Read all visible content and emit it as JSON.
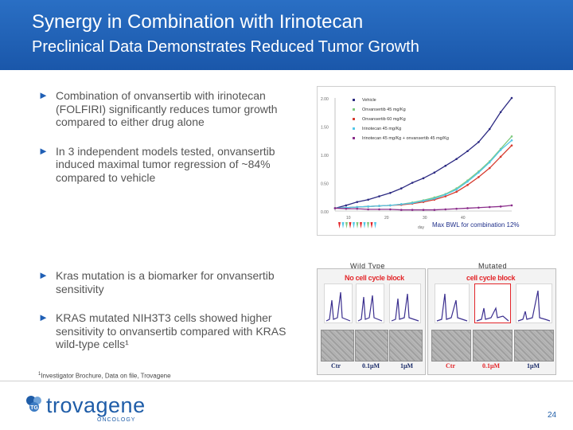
{
  "header": {
    "title": "Synergy in Combination with Irinotecan",
    "subtitle": "Preclinical Data Demonstrates Reduced Tumor Growth"
  },
  "bullets_top": [
    "Combination of onvansertib with irinotecan (FOLFIRI) significantly reduces tumor growth compared to either drug alone",
    "In 3 independent models tested, onvansertib induced maximal tumor regression of ~84% compared to vehicle"
  ],
  "bullets_bottom": [
    "Kras mutation is a biomarker for onvansertib sensitivity",
    "KRAS mutated NIH3T3 cells showed higher sensitivity to onvansertib compared with KRAS wild-type cells¹"
  ],
  "bullet_arrow": "►",
  "chart_data": {
    "type": "line",
    "x": [
      0,
      2,
      4,
      6,
      8,
      10,
      12,
      14,
      16,
      18,
      20,
      22,
      24,
      26,
      28,
      30,
      32
    ],
    "series": [
      {
        "name": "Vehicle",
        "color": "#2c2a82",
        "values": [
          0.05,
          0.1,
          0.16,
          0.2,
          0.26,
          0.32,
          0.4,
          0.5,
          0.58,
          0.68,
          0.8,
          0.92,
          1.06,
          1.22,
          1.45,
          1.75,
          2.0
        ]
      },
      {
        "name": "Onvansertib 45 mg/Kg",
        "color": "#7fc97f",
        "values": [
          0.05,
          0.06,
          0.07,
          0.08,
          0.09,
          0.1,
          0.12,
          0.15,
          0.19,
          0.24,
          0.3,
          0.4,
          0.54,
          0.7,
          0.88,
          1.1,
          1.32
        ]
      },
      {
        "name": "Onvansertib 60 mg/Kg",
        "color": "#d63b2f",
        "values": [
          0.05,
          0.06,
          0.07,
          0.08,
          0.09,
          0.1,
          0.11,
          0.13,
          0.16,
          0.2,
          0.26,
          0.34,
          0.46,
          0.6,
          0.76,
          0.96,
          1.16
        ]
      },
      {
        "name": "Irinotecan 45 mg/Kg",
        "color": "#52c7e8",
        "values": [
          0.05,
          0.06,
          0.07,
          0.08,
          0.09,
          0.1,
          0.12,
          0.14,
          0.18,
          0.22,
          0.29,
          0.38,
          0.52,
          0.68,
          0.86,
          1.08,
          1.25
        ]
      },
      {
        "name": "Irinotecan 45 mg/Kg + onvansertib 45 mg/Kg",
        "color": "#8a2c8a",
        "values": [
          0.05,
          0.04,
          0.04,
          0.03,
          0.03,
          0.03,
          0.02,
          0.02,
          0.02,
          0.02,
          0.03,
          0.04,
          0.05,
          0.06,
          0.07,
          0.08,
          0.1
        ]
      }
    ],
    "ylim": [
      0,
      2.0
    ],
    "xlim": [
      0,
      32
    ],
    "y_ticks": [
      "2.00",
      "1.50",
      "1.00",
      "0.50",
      "0.00"
    ],
    "x_ticks": [
      "10",
      "20",
      "30",
      "40"
    ],
    "xlabel": "day",
    "annotation": "Max BWL for combination 12%",
    "legend_position": "top-right",
    "markers": {
      "count": 11,
      "colors": [
        "#e3262a",
        "#52c7e8",
        "#7fc97f"
      ]
    }
  },
  "panels": {
    "wild_type_label": "Wild Type",
    "mutated_label": "Mutated",
    "wild_type_header": "No cell cycle block",
    "mutated_header": "cell cycle block",
    "wild_type_doses": [
      "Ctr",
      "0.1μM",
      "1μM"
    ],
    "mutated_doses": [
      "Ctr",
      "0.1μM",
      "1μM"
    ],
    "dose_colors": [
      "#1d2e6a",
      "#1d2e6a",
      "#1d2e6a",
      "#e3262a",
      "#e3262a",
      "#1d2e6a"
    ]
  },
  "footnote": {
    "marker": "1",
    "text": "Investigator Brochure, Data on file, Trovagene"
  },
  "logo": {
    "name": "trovagene",
    "sub": "ONCOLOGY",
    "icon_text": "TG"
  },
  "page_number": "24",
  "colors": {
    "header_blue": "#1f5fb5",
    "accent_red": "#e3262a"
  }
}
